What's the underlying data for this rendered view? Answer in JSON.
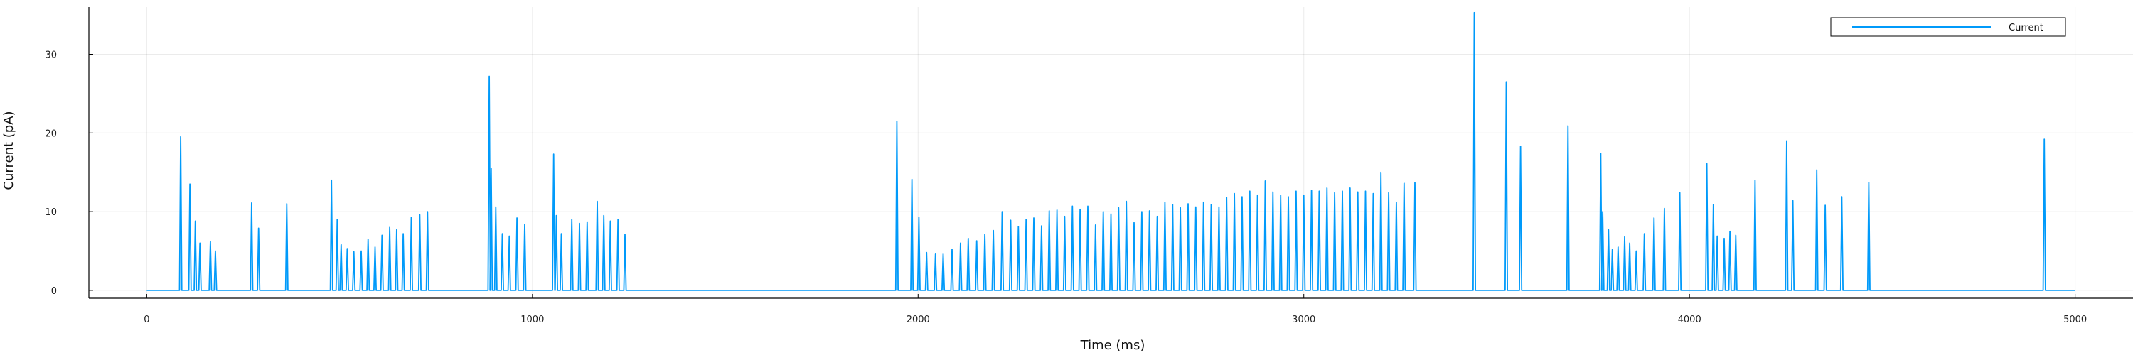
{
  "chart_data": {
    "type": "line",
    "xlabel": "Time (ms)",
    "ylabel": "Current (pA)",
    "xlim": [
      -150,
      5150
    ],
    "ylim": [
      -1,
      36
    ],
    "xticks": [
      0,
      1000,
      2000,
      3000,
      4000,
      5000
    ],
    "yticks": [
      0,
      10,
      20,
      30
    ],
    "grid": true,
    "legend": "top-right",
    "series": [
      {
        "name": "Current",
        "color": "#009AFA",
        "baseline": 0,
        "spikes": [
          [
            88,
            19.5
          ],
          [
            112,
            13.5
          ],
          [
            126,
            8.8
          ],
          [
            138,
            6.0
          ],
          [
            165,
            6.2
          ],
          [
            178,
            5.0
          ],
          [
            272,
            11.1
          ],
          [
            290,
            7.9
          ],
          [
            363,
            11.0
          ],
          [
            479,
            14.0
          ],
          [
            494,
            9.0
          ],
          [
            504,
            5.8
          ],
          [
            520,
            5.3
          ],
          [
            537,
            4.9
          ],
          [
            556,
            5.0
          ],
          [
            574,
            6.5
          ],
          [
            592,
            5.5
          ],
          [
            610,
            7.0
          ],
          [
            630,
            8.0
          ],
          [
            648,
            7.7
          ],
          [
            665,
            7.2
          ],
          [
            686,
            9.3
          ],
          [
            708,
            9.6
          ],
          [
            728,
            10.0
          ],
          [
            888,
            27.2
          ],
          [
            893,
            15.5
          ],
          [
            905,
            10.6
          ],
          [
            922,
            7.2
          ],
          [
            940,
            6.9
          ],
          [
            960,
            9.2
          ],
          [
            980,
            8.4
          ],
          [
            1055,
            17.3
          ],
          [
            1062,
            9.5
          ],
          [
            1075,
            7.2
          ],
          [
            1102,
            9.0
          ],
          [
            1122,
            8.5
          ],
          [
            1142,
            8.7
          ],
          [
            1168,
            11.3
          ],
          [
            1185,
            9.5
          ],
          [
            1202,
            8.8
          ],
          [
            1222,
            9.0
          ],
          [
            1240,
            7.1
          ],
          [
            1945,
            21.5
          ],
          [
            1984,
            14.1
          ],
          [
            2002,
            9.3
          ],
          [
            2022,
            4.8
          ],
          [
            2045,
            4.6
          ],
          [
            2065,
            4.6
          ],
          [
            2088,
            5.2
          ],
          [
            2110,
            6.0
          ],
          [
            2130,
            6.6
          ],
          [
            2152,
            6.3
          ],
          [
            2173,
            7.1
          ],
          [
            2195,
            7.6
          ],
          [
            2218,
            10.0
          ],
          [
            2240,
            8.9
          ],
          [
            2260,
            8.1
          ],
          [
            2280,
            9.0
          ],
          [
            2300,
            9.2
          ],
          [
            2320,
            8.2
          ],
          [
            2340,
            10.1
          ],
          [
            2360,
            10.2
          ],
          [
            2380,
            9.4
          ],
          [
            2400,
            10.7
          ],
          [
            2420,
            10.3
          ],
          [
            2440,
            10.7
          ],
          [
            2460,
            8.3
          ],
          [
            2480,
            10.0
          ],
          [
            2500,
            9.7
          ],
          [
            2520,
            10.5
          ],
          [
            2540,
            11.3
          ],
          [
            2560,
            8.6
          ],
          [
            2580,
            10.0
          ],
          [
            2600,
            10.1
          ],
          [
            2620,
            9.4
          ],
          [
            2640,
            11.2
          ],
          [
            2660,
            10.9
          ],
          [
            2680,
            10.5
          ],
          [
            2700,
            11.0
          ],
          [
            2720,
            10.6
          ],
          [
            2740,
            11.2
          ],
          [
            2760,
            10.9
          ],
          [
            2780,
            10.6
          ],
          [
            2800,
            11.8
          ],
          [
            2820,
            12.3
          ],
          [
            2840,
            11.9
          ],
          [
            2860,
            12.6
          ],
          [
            2880,
            12.1
          ],
          [
            2900,
            13.9
          ],
          [
            2920,
            12.5
          ],
          [
            2940,
            12.1
          ],
          [
            2960,
            11.9
          ],
          [
            2980,
            12.6
          ],
          [
            3000,
            12.1
          ],
          [
            3020,
            12.7
          ],
          [
            3040,
            12.6
          ],
          [
            3060,
            13.0
          ],
          [
            3080,
            12.4
          ],
          [
            3100,
            12.6
          ],
          [
            3120,
            13.0
          ],
          [
            3140,
            12.5
          ],
          [
            3160,
            12.6
          ],
          [
            3180,
            12.3
          ],
          [
            3200,
            15.0
          ],
          [
            3220,
            12.4
          ],
          [
            3240,
            11.2
          ],
          [
            3260,
            13.6
          ],
          [
            3288,
            13.7
          ],
          [
            3442,
            35.3
          ],
          [
            3525,
            26.5
          ],
          [
            3562,
            18.3
          ],
          [
            3685,
            20.9
          ],
          [
            3770,
            17.4
          ],
          [
            3775,
            10.0
          ],
          [
            3790,
            7.7
          ],
          [
            3800,
            5.2
          ],
          [
            3815,
            5.5
          ],
          [
            3832,
            6.8
          ],
          [
            3845,
            6.0
          ],
          [
            3862,
            5.0
          ],
          [
            3883,
            7.2
          ],
          [
            3908,
            9.2
          ],
          [
            3935,
            10.4
          ],
          [
            3975,
            12.4
          ],
          [
            4045,
            16.1
          ],
          [
            4062,
            10.9
          ],
          [
            4072,
            6.9
          ],
          [
            4090,
            6.6
          ],
          [
            4105,
            7.5
          ],
          [
            4120,
            7.0
          ],
          [
            4170,
            14.0
          ],
          [
            4252,
            19.0
          ],
          [
            4268,
            11.4
          ],
          [
            4330,
            15.3
          ],
          [
            4352,
            10.8
          ],
          [
            4395,
            11.9
          ],
          [
            4465,
            13.7
          ],
          [
            4920,
            19.2
          ]
        ]
      }
    ]
  }
}
